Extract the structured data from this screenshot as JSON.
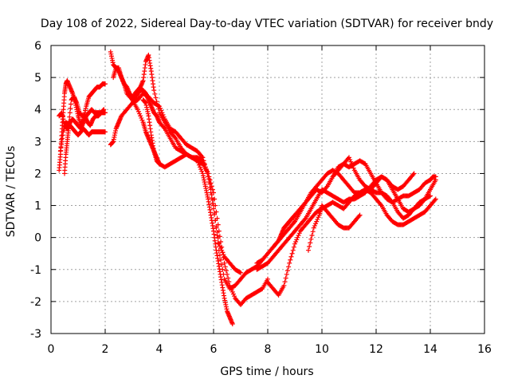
{
  "chart_data": {
    "type": "scatter",
    "title": "Day 108 of 2022, Sidereal Day-to-day VTEC variation (SDTVAR) for receiver bndy",
    "xlabel": "GPS time / hours",
    "ylabel": "SDTVAR / TECUs",
    "xlim": [
      0,
      16
    ],
    "ylim": [
      -3,
      6
    ],
    "xticks": [
      0,
      2,
      4,
      6,
      8,
      10,
      12,
      14,
      16
    ],
    "yticks": [
      -3,
      -2,
      -1,
      0,
      1,
      2,
      3,
      4,
      5,
      6
    ],
    "grid": true,
    "marker": "+",
    "color": "#ff0000",
    "series": [
      {
        "x": [
          0.3,
          0.35,
          0.4,
          0.45,
          0.5,
          0.55,
          0.6,
          0.7,
          0.8,
          0.9,
          1.0,
          1.1,
          1.2,
          1.3,
          1.4,
          1.5,
          1.6,
          1.7,
          1.8,
          1.9,
          2.0
        ],
        "y": [
          2.1,
          2.6,
          3.3,
          3.9,
          4.5,
          4.8,
          4.9,
          4.7,
          4.5,
          4.2,
          3.8,
          3.5,
          3.7,
          4.1,
          4.4,
          4.5,
          4.6,
          4.7,
          4.7,
          4.8,
          4.8
        ]
      },
      {
        "x": [
          0.3,
          0.4,
          0.5,
          0.6,
          0.7,
          0.8,
          0.9,
          1.0,
          1.1,
          1.2,
          1.3,
          1.4,
          1.5,
          1.6,
          1.7,
          1.8,
          1.9,
          2.0
        ],
        "y": [
          3.8,
          3.9,
          3.5,
          3.4,
          3.5,
          3.4,
          3.3,
          3.2,
          3.3,
          3.4,
          3.3,
          3.2,
          3.3,
          3.3,
          3.3,
          3.3,
          3.3,
          3.3
        ]
      },
      {
        "x": [
          0.35,
          0.45,
          0.55,
          0.65,
          0.75,
          0.85,
          0.95,
          1.05,
          1.15,
          1.25,
          1.35,
          1.45,
          1.55,
          1.65,
          1.75,
          1.85,
          1.95
        ],
        "y": [
          2.7,
          3.3,
          3.6,
          3.5,
          4.3,
          4.4,
          4.2,
          3.9,
          3.8,
          3.8,
          3.6,
          3.5,
          3.7,
          3.8,
          3.8,
          3.9,
          4.0
        ]
      },
      {
        "x": [
          0.5,
          0.55,
          0.6,
          0.65,
          0.7,
          0.8,
          0.9,
          1.0,
          1.1,
          1.2,
          1.3,
          1.4,
          1.5,
          1.6,
          1.7,
          1.8,
          1.9,
          2.0
        ],
        "y": [
          2.0,
          2.6,
          3.0,
          3.4,
          3.6,
          3.7,
          3.6,
          3.5,
          3.4,
          3.6,
          3.8,
          3.9,
          4.0,
          3.9,
          3.9,
          3.9,
          3.9,
          3.9
        ]
      },
      {
        "x": [
          2.2,
          2.3,
          2.4,
          2.5,
          2.6,
          2.7,
          2.8,
          2.9,
          3.0,
          3.1,
          3.2,
          3.3,
          3.4,
          3.5,
          3.6,
          3.7,
          3.8,
          3.9,
          4.0,
          4.2,
          4.4,
          4.6,
          4.8,
          5.0,
          5.2,
          5.4,
          5.6,
          5.7,
          5.8,
          5.9,
          6.0,
          6.1,
          6.2,
          6.3,
          6.4,
          6.5,
          6.6,
          6.7
        ],
        "y": [
          5.8,
          5.4,
          5.3,
          5.3,
          5.0,
          4.8,
          4.7,
          4.5,
          4.4,
          4.3,
          4.5,
          4.6,
          4.6,
          4.5,
          4.3,
          4.1,
          3.9,
          3.8,
          3.6,
          3.4,
          3.1,
          2.8,
          2.7,
          2.6,
          2.5,
          2.4,
          2.0,
          1.6,
          1.2,
          0.7,
          0.2,
          -0.4,
          -0.9,
          -1.4,
          -1.9,
          -2.3,
          -2.5,
          -2.7
        ]
      },
      {
        "x": [
          2.2,
          2.3,
          2.4,
          2.5,
          2.6,
          2.8,
          3.0,
          3.2,
          3.4,
          3.6,
          3.8,
          4.0,
          4.2,
          4.4,
          4.6,
          4.8,
          5.0,
          5.2,
          5.4,
          5.6,
          5.8,
          6.0,
          6.2,
          6.4,
          6.6,
          6.8,
          7.0
        ],
        "y": [
          2.9,
          3.0,
          3.4,
          3.6,
          3.8,
          4.0,
          4.2,
          4.3,
          4.5,
          4.4,
          4.2,
          4.1,
          3.7,
          3.4,
          3.3,
          3.1,
          2.9,
          2.8,
          2.7,
          2.5,
          1.9,
          0.9,
          -0.2,
          -0.6,
          -0.8,
          -1.0,
          -1.1
        ]
      },
      {
        "x": [
          2.3,
          2.4,
          2.5,
          2.6,
          2.7,
          2.8,
          3.0,
          3.2,
          3.4,
          3.5,
          3.6,
          3.7,
          3.8,
          3.9,
          4.0,
          4.2,
          4.4,
          4.6,
          4.8,
          5.0,
          5.2,
          5.4,
          5.6,
          5.8,
          6.0,
          6.2,
          6.4,
          6.6,
          6.8,
          7.0,
          7.2,
          7.4,
          7.6,
          7.8
        ],
        "y": [
          5.0,
          5.3,
          5.2,
          5.0,
          4.8,
          4.5,
          4.3,
          4.0,
          3.6,
          3.3,
          3.1,
          2.9,
          2.7,
          2.5,
          2.3,
          2.2,
          2.3,
          2.4,
          2.5,
          2.6,
          2.5,
          2.4,
          2.3,
          2.0,
          1.0,
          -0.4,
          -1.3,
          -1.6,
          -1.5,
          -1.3,
          -1.1,
          -1.0,
          -0.9,
          -0.7
        ]
      },
      {
        "x": [
          3.0,
          3.1,
          3.2,
          3.3,
          3.4,
          3.5,
          3.6,
          3.7,
          3.8,
          4.0,
          4.2,
          4.4,
          4.6,
          4.8,
          5.0,
          5.2,
          5.4,
          5.6,
          5.8,
          6.0,
          6.2,
          6.4,
          6.6,
          6.8,
          7.0,
          7.2,
          7.4,
          7.6,
          7.8,
          8.0
        ],
        "y": [
          4.3,
          4.5,
          4.6,
          4.7,
          4.9,
          5.5,
          5.7,
          5.2,
          4.6,
          3.9,
          3.6,
          3.3,
          3.1,
          2.8,
          2.6,
          2.5,
          2.5,
          2.4,
          2.0,
          1.4,
          0.2,
          -0.8,
          -1.5,
          -1.9,
          -2.1,
          -1.9,
          -1.8,
          -1.7,
          -1.6,
          -1.3
        ]
      },
      {
        "x": [
          3.4,
          3.5,
          3.6,
          3.7,
          3.8,
          3.9,
          4.0
        ],
        "y": [
          4.3,
          4.2,
          3.8,
          3.2,
          2.7,
          2.4,
          2.3
        ]
      },
      {
        "x": [
          7.6,
          7.8,
          8.0,
          8.2,
          8.4,
          8.5,
          8.6,
          8.7,
          8.8,
          8.9,
          9.0,
          9.2,
          9.4,
          9.6,
          9.8,
          10.0,
          10.2,
          10.4,
          10.6,
          10.8,
          11.0,
          11.2,
          11.4,
          11.6,
          11.8,
          12.0,
          12.2,
          12.4,
          12.6,
          12.8,
          13.0,
          13.2,
          13.4,
          13.6,
          13.8,
          14.0,
          14.1,
          14.2
        ],
        "y": [
          -0.8,
          -0.7,
          -0.5,
          -0.3,
          -0.1,
          0.1,
          0.3,
          0.4,
          0.5,
          0.6,
          0.7,
          0.9,
          1.1,
          1.3,
          1.5,
          1.4,
          1.6,
          1.9,
          2.2,
          2.3,
          2.2,
          2.3,
          2.4,
          2.3,
          2.0,
          1.7,
          1.4,
          1.2,
          1.1,
          1.2,
          1.3,
          1.3,
          1.4,
          1.5,
          1.7,
          1.8,
          1.9,
          1.9
        ]
      },
      {
        "x": [
          7.6,
          7.8,
          8.0,
          8.2,
          8.4,
          8.6,
          8.8,
          9.0,
          9.2,
          9.4,
          9.6,
          9.8,
          10.0,
          10.2,
          10.4,
          10.6,
          10.8,
          11.0,
          11.2,
          11.4,
          11.6,
          11.8,
          12.0,
          12.2,
          12.4,
          12.6,
          12.8,
          13.0,
          13.2,
          13.4,
          13.6,
          13.8,
          14.0,
          14.2
        ],
        "y": [
          -1.0,
          -0.9,
          -0.8,
          -0.6,
          -0.4,
          -0.2,
          0.0,
          0.2,
          0.4,
          0.6,
          0.9,
          1.2,
          1.5,
          1.4,
          1.3,
          1.2,
          1.1,
          1.2,
          1.2,
          1.3,
          1.4,
          1.6,
          1.8,
          1.9,
          1.8,
          1.5,
          1.2,
          0.9,
          0.8,
          0.9,
          1.0,
          1.2,
          1.5,
          1.8
        ]
      },
      {
        "x": [
          8.0,
          8.2,
          8.4,
          8.6,
          8.8,
          9.0,
          9.2,
          9.4,
          9.6,
          9.8,
          10.0,
          10.2,
          10.4,
          10.6,
          10.8,
          11.0,
          11.2,
          11.4,
          11.6,
          11.8,
          12.0,
          12.2,
          12.4,
          12.6,
          12.8,
          13.0,
          13.2,
          13.4,
          13.6,
          13.8,
          14.0,
          14.2
        ],
        "y": [
          -1.4,
          -1.6,
          -1.8,
          -1.5,
          -0.8,
          -0.2,
          0.2,
          0.4,
          0.6,
          0.8,
          0.9,
          1.0,
          1.1,
          1.0,
          0.9,
          1.1,
          1.3,
          1.4,
          1.5,
          1.4,
          1.2,
          1.0,
          0.7,
          0.5,
          0.4,
          0.4,
          0.5,
          0.6,
          0.7,
          0.8,
          1.0,
          1.2
        ]
      },
      {
        "x": [
          8.2,
          8.4,
          8.6,
          8.8,
          9.0,
          9.2,
          9.4,
          9.6,
          9.8,
          10.0,
          10.2,
          10.4,
          10.6,
          10.8,
          11.0,
          11.2,
          11.4,
          11.6,
          11.8,
          12.0,
          12.2,
          12.4,
          12.6,
          12.8,
          13.0,
          13.2,
          13.4,
          13.6,
          13.8,
          14.0
        ],
        "y": [
          -0.3,
          -0.1,
          0.1,
          0.3,
          0.5,
          0.8,
          1.1,
          1.4,
          1.6,
          1.8,
          2.0,
          2.1,
          2.0,
          1.8,
          1.6,
          1.4,
          1.4,
          1.5,
          1.5,
          1.4,
          1.4,
          1.3,
          1.1,
          0.8,
          0.6,
          0.7,
          0.9,
          1.1,
          1.2,
          1.3
        ]
      },
      {
        "x": [
          9.5,
          9.7,
          9.9,
          10.0,
          10.2,
          10.4,
          10.6,
          10.8,
          11.0,
          11.2,
          11.4
        ],
        "y": [
          -0.4,
          0.3,
          0.7,
          1.0,
          0.8,
          0.6,
          0.4,
          0.3,
          0.3,
          0.5,
          0.7
        ]
      },
      {
        "x": [
          10.4,
          10.6,
          10.8,
          11.0,
          11.2,
          11.4,
          11.6,
          11.8,
          12.0,
          12.2,
          12.4,
          12.6,
          12.8,
          13.0,
          13.2,
          13.4
        ],
        "y": [
          1.9,
          2.1,
          2.3,
          2.5,
          2.1,
          1.8,
          1.6,
          1.5,
          1.7,
          1.9,
          1.8,
          1.6,
          1.5,
          1.6,
          1.8,
          2.0
        ]
      }
    ]
  }
}
